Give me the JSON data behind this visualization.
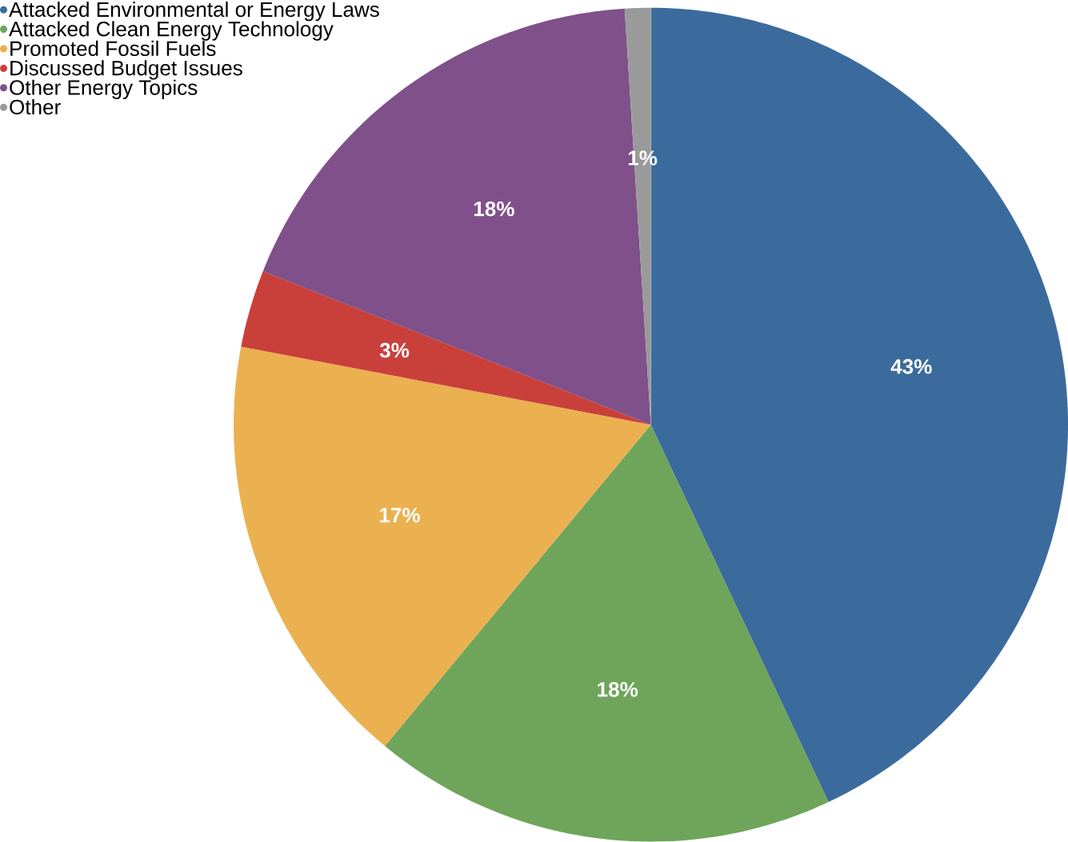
{
  "chart_data": {
    "type": "pie",
    "categories": [
      "Attacked Environmental or Energy Laws",
      "Attacked Clean Energy Technology",
      "Promoted Fossil Fuels",
      "Discussed Budget Issues",
      "Other Energy Topics",
      "Other"
    ],
    "values": [
      43,
      18,
      17,
      3,
      18,
      1
    ],
    "value_labels": [
      "43%",
      "18%",
      "17%",
      "3%",
      "18%",
      "1%"
    ],
    "colors": [
      "#3b6b9c",
      "#6ea55a",
      "#ebb04f",
      "#c9403a",
      "#80508a",
      "#9a9a9a"
    ],
    "legend": "top left"
  }
}
